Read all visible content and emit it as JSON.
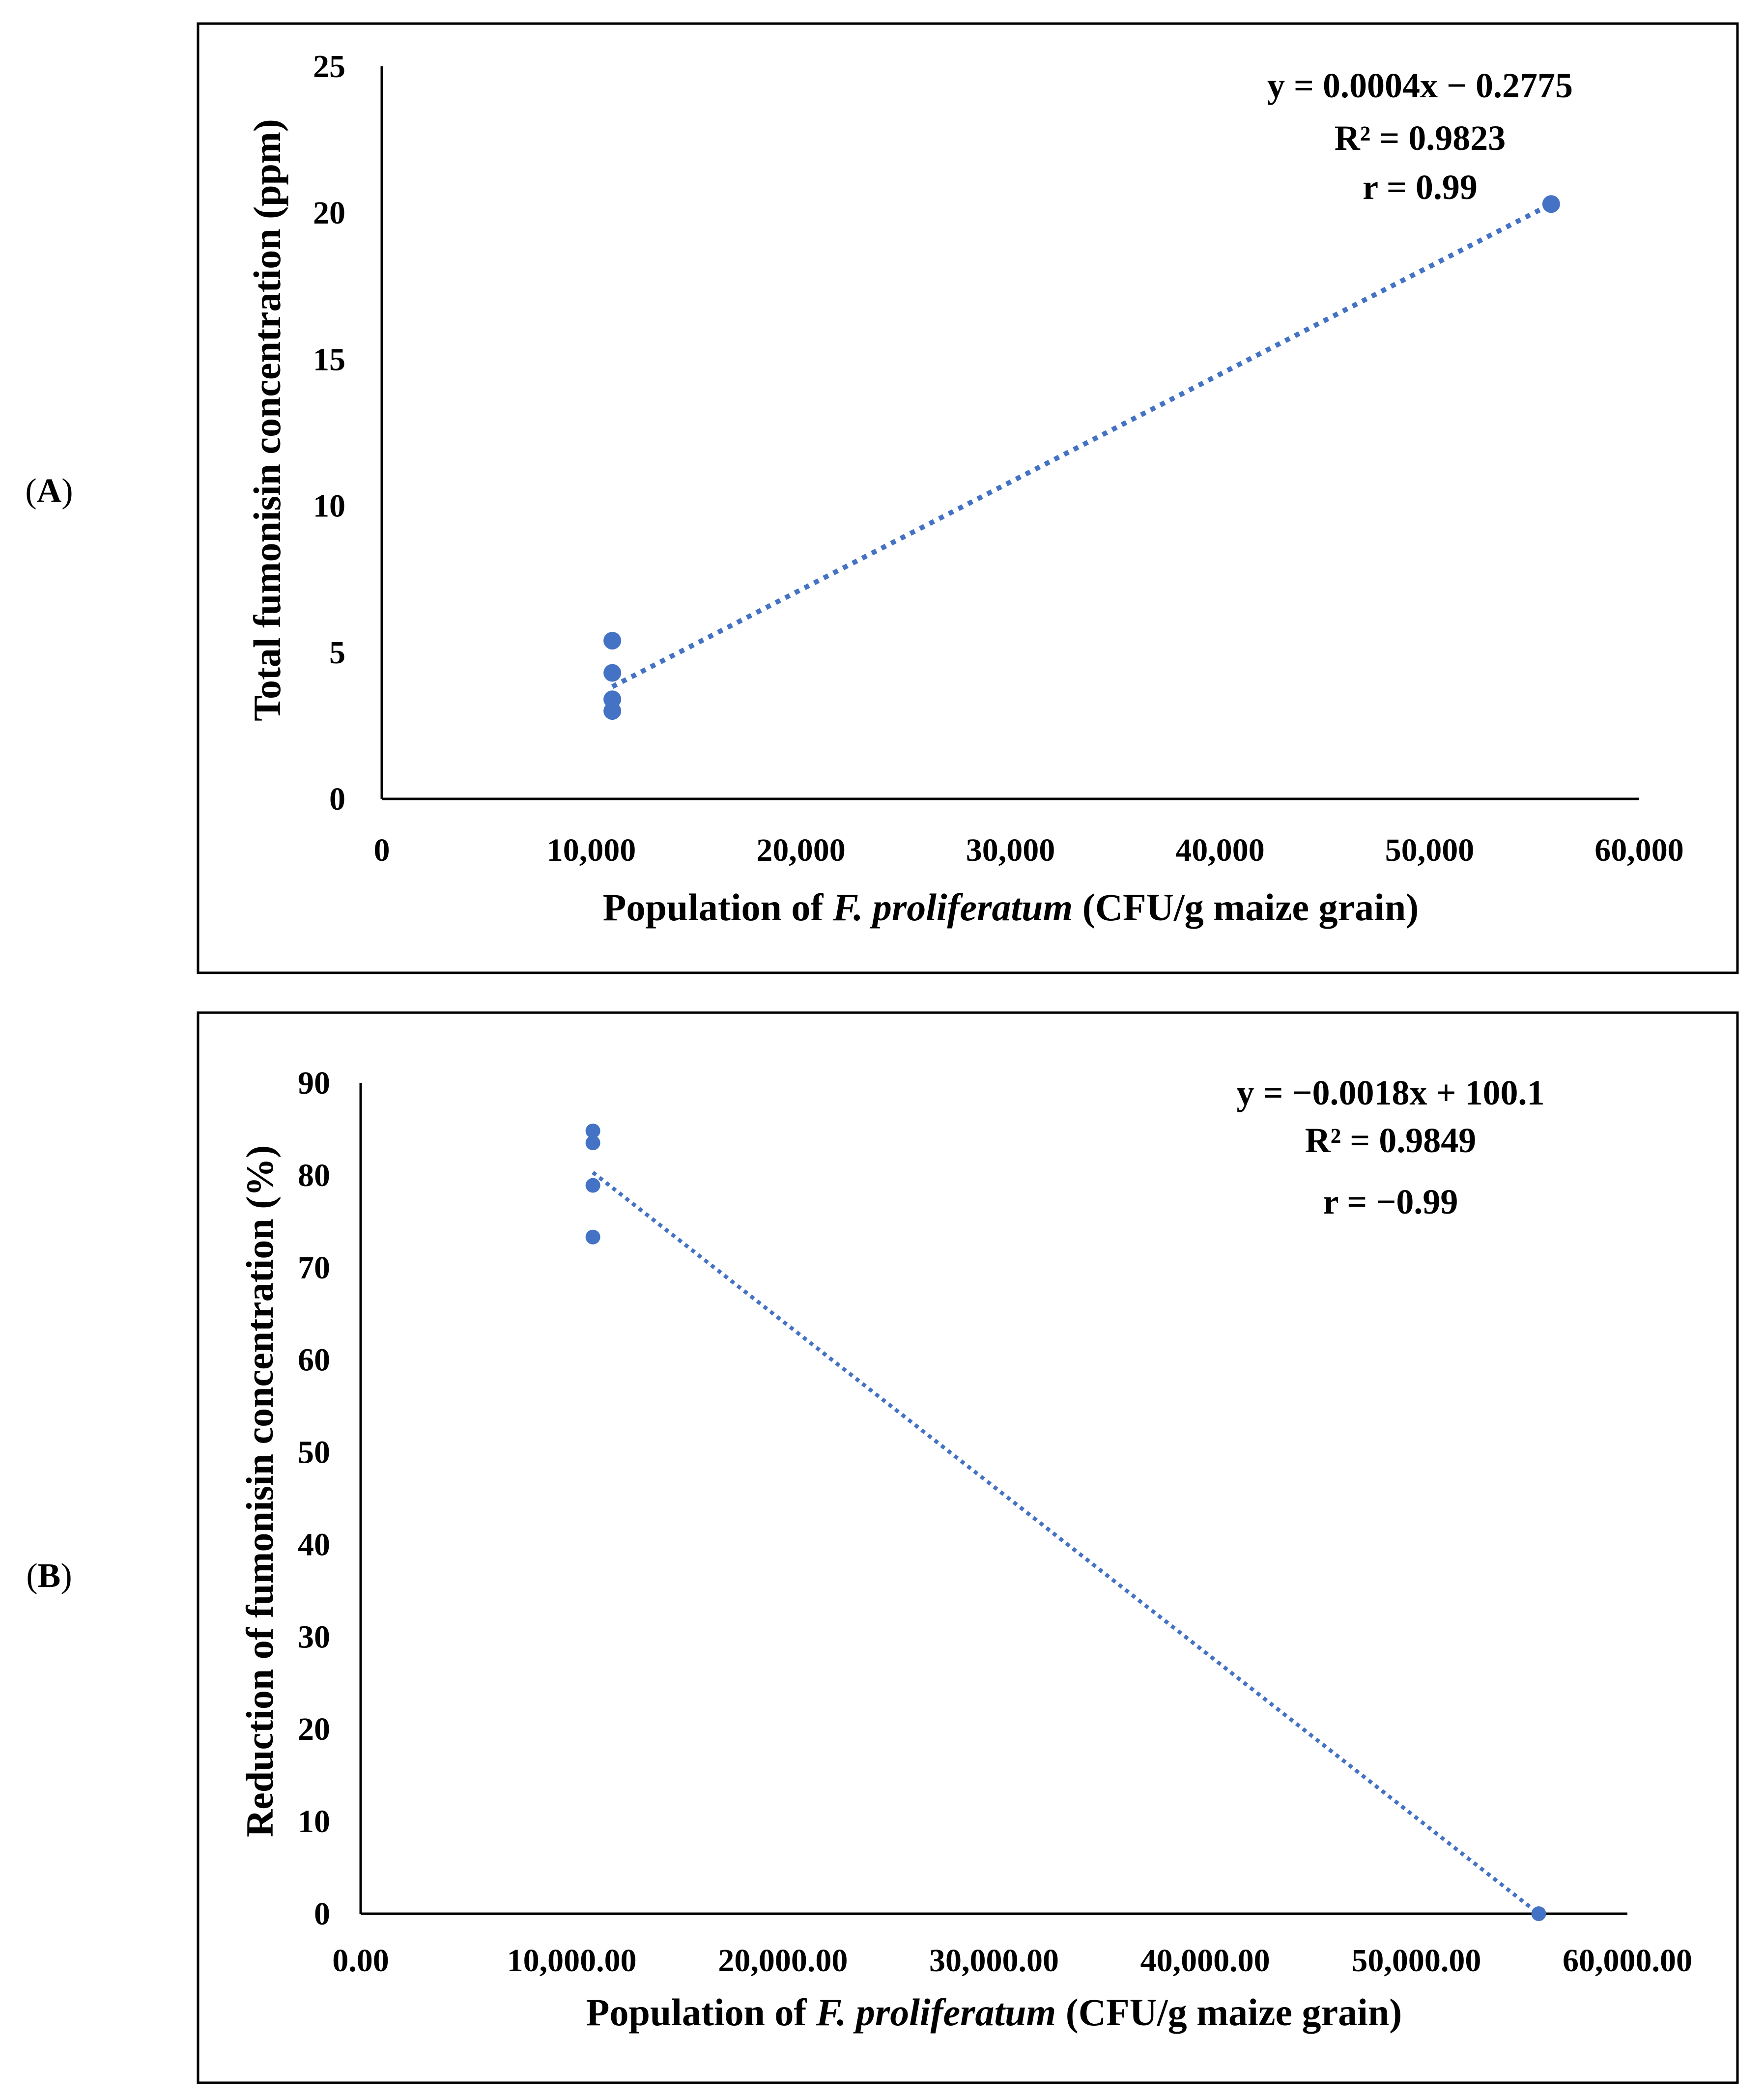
{
  "panels": [
    {
      "label_open": "(",
      "label_letter": "A",
      "label_close": ")",
      "chart_data": {
        "type": "scatter",
        "xlabel_pre": "Population of ",
        "xlabel_italic": "F. proliferatum",
        "xlabel_post": " (CFU/g maize grain)",
        "ylabel": "Total  fumonisin concentration  (ppm)",
        "xlim": [
          0,
          60000
        ],
        "ylim": [
          0,
          25
        ],
        "xticks": [
          0,
          10000,
          20000,
          30000,
          40000,
          50000,
          60000
        ],
        "xtick_labels": [
          "0",
          "10,000",
          "20,000",
          "30,000",
          "40,000",
          "50,000",
          "60,000"
        ],
        "yticks": [
          0,
          5,
          10,
          15,
          20,
          25
        ],
        "ytick_labels": [
          "0",
          "5",
          "10",
          "15",
          "20",
          "25"
        ],
        "points": [
          {
            "x": 11000,
            "y": 5.4
          },
          {
            "x": 11000,
            "y": 4.3
          },
          {
            "x": 11000,
            "y": 3.4
          },
          {
            "x": 11000,
            "y": 3.0
          },
          {
            "x": 55800,
            "y": 20.3
          }
        ],
        "trendline": {
          "x_start": 11000,
          "x_end": 55800,
          "y_start": 3.83,
          "y_end": 20.3
        },
        "equation": "y = 0.0004x − 0.2775",
        "r_squared": "R² = 0.9823",
        "r": "r = 0.99",
        "color": "#4472C4",
        "grid": false
      }
    },
    {
      "label_open": "(",
      "label_letter": "B",
      "label_close": ")",
      "chart_data": {
        "type": "scatter",
        "xlabel_pre": "Population of ",
        "xlabel_italic": "F. proliferatum",
        "xlabel_post": " (CFU/g maize grain)",
        "ylabel": "Reduction of fumonisin concentration  (%)",
        "xlim": [
          0,
          60000
        ],
        "ylim": [
          0,
          90
        ],
        "xticks": [
          0,
          10000,
          20000,
          30000,
          40000,
          50000,
          60000
        ],
        "xtick_labels": [
          "0.00",
          "10,000.00",
          "20,000.00",
          "30,000.00",
          "40,000.00",
          "50,000.00",
          "60,000.00"
        ],
        "yticks": [
          0,
          10,
          20,
          30,
          40,
          50,
          60,
          70,
          80,
          90
        ],
        "ytick_labels": [
          "0",
          "10",
          "20",
          "30",
          "40",
          "50",
          "60",
          "70",
          "80",
          "90"
        ],
        "points": [
          {
            "x": 11000,
            "y": 84.8
          },
          {
            "x": 11000,
            "y": 83.5
          },
          {
            "x": 11000,
            "y": 78.9
          },
          {
            "x": 11000,
            "y": 73.3
          },
          {
            "x": 55800,
            "y": 0
          }
        ],
        "trendline": {
          "x_start": 11000,
          "x_end": 55800,
          "y_start": 80.3,
          "y_end": 0
        },
        "equation": "y = −0.0018x + 100.1",
        "r_squared": "R² = 0.9849",
        "r": "r = −0.99",
        "color": "#4472C4",
        "grid": false
      }
    }
  ]
}
